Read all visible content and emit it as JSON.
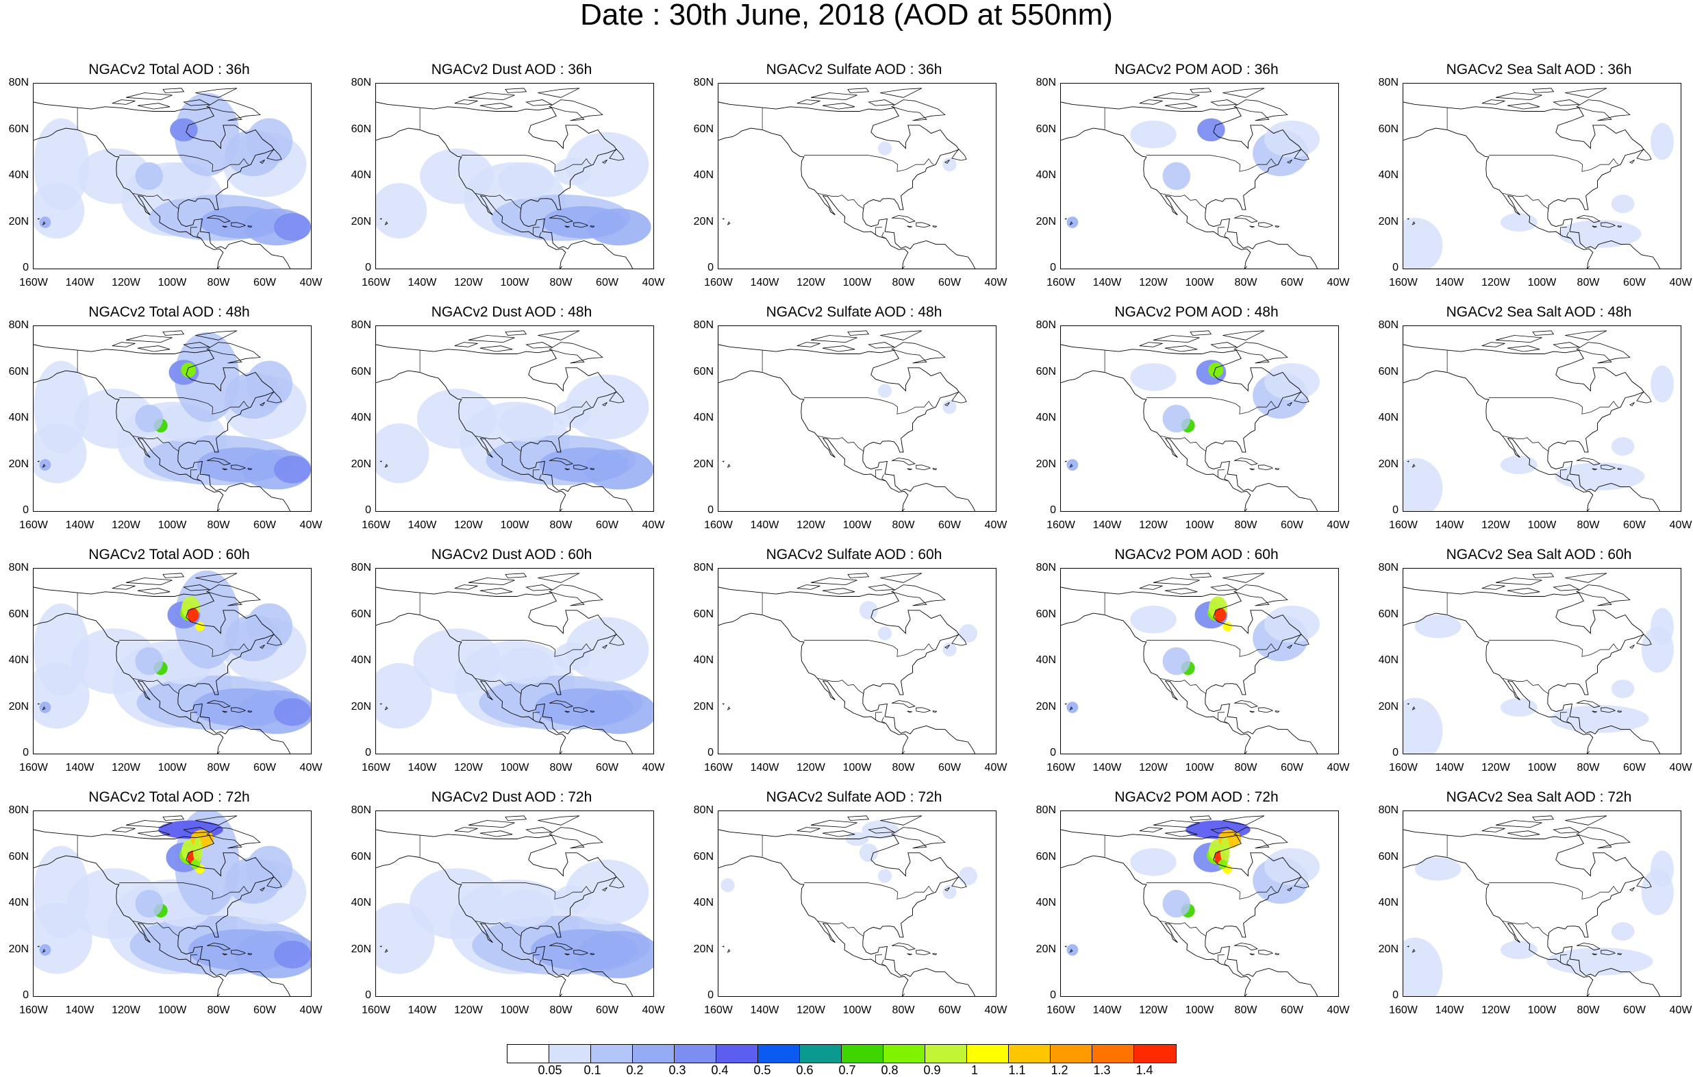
{
  "title": "Date : 30th June, 2018 (AOD at 550nm)",
  "lat_ticks": [
    "80N",
    "60N",
    "40N",
    "20N",
    "0"
  ],
  "lon_ticks": [
    "160W",
    "140W",
    "120W",
    "100W",
    "80W",
    "60W",
    "40W"
  ],
  "panels": [
    {
      "title": "NGACv2 Total AOD : 36h",
      "species": "total",
      "lead_hours": 36
    },
    {
      "title": "NGACv2 Dust AOD : 36h",
      "species": "dust",
      "lead_hours": 36
    },
    {
      "title": "NGACv2 Sulfate AOD : 36h",
      "species": "sulfate",
      "lead_hours": 36
    },
    {
      "title": "NGACv2 POM AOD : 36h",
      "species": "pom",
      "lead_hours": 36
    },
    {
      "title": "NGACv2 Sea Salt AOD : 36h",
      "species": "seasalt",
      "lead_hours": 36
    },
    {
      "title": "NGACv2 Total AOD : 48h",
      "species": "total",
      "lead_hours": 48
    },
    {
      "title": "NGACv2 Dust AOD : 48h",
      "species": "dust",
      "lead_hours": 48
    },
    {
      "title": "NGACv2 Sulfate AOD : 48h",
      "species": "sulfate",
      "lead_hours": 48
    },
    {
      "title": "NGACv2 POM AOD : 48h",
      "species": "pom",
      "lead_hours": 48
    },
    {
      "title": "NGACv2 Sea Salt AOD : 48h",
      "species": "seasalt",
      "lead_hours": 48
    },
    {
      "title": "NGACv2 Total AOD : 60h",
      "species": "total",
      "lead_hours": 60
    },
    {
      "title": "NGACv2 Dust AOD : 60h",
      "species": "dust",
      "lead_hours": 60
    },
    {
      "title": "NGACv2 Sulfate AOD : 60h",
      "species": "sulfate",
      "lead_hours": 60
    },
    {
      "title": "NGACv2 POM AOD : 60h",
      "species": "pom",
      "lead_hours": 60
    },
    {
      "title": "NGACv2 Sea Salt AOD : 60h",
      "species": "seasalt",
      "lead_hours": 60
    },
    {
      "title": "NGACv2 Total AOD : 72h",
      "species": "total",
      "lead_hours": 72
    },
    {
      "title": "NGACv2 Dust AOD : 72h",
      "species": "dust",
      "lead_hours": 72
    },
    {
      "title": "NGACv2 Sulfate AOD : 72h",
      "species": "sulfate",
      "lead_hours": 72
    },
    {
      "title": "NGACv2 POM AOD : 72h",
      "species": "pom",
      "lead_hours": 72
    },
    {
      "title": "NGACv2 Sea Salt  AOD : 72h",
      "species": "seasalt",
      "lead_hours": 72
    }
  ],
  "map_extent": {
    "lon": [
      -160,
      -40
    ],
    "lat": [
      0,
      80
    ]
  },
  "colorbar": {
    "labels": [
      "0.05",
      "0.1",
      "0.2",
      "0.3",
      "0.4",
      "0.5",
      "0.6",
      "0.7",
      "0.8",
      "0.9",
      "1",
      "1.1",
      "1.2",
      "1.3",
      "1.4"
    ],
    "colors": [
      "#ffffff",
      "#d6e1fb",
      "#b4c6f7",
      "#95acf4",
      "#7d8ef2",
      "#5c5ef0",
      "#0a5cf0",
      "#0a9a90",
      "#3ed600",
      "#7ff200",
      "#c2f535",
      "#ffff00",
      "#ffc600",
      "#ff9a00",
      "#ff7300",
      "#ff2a00"
    ]
  }
}
